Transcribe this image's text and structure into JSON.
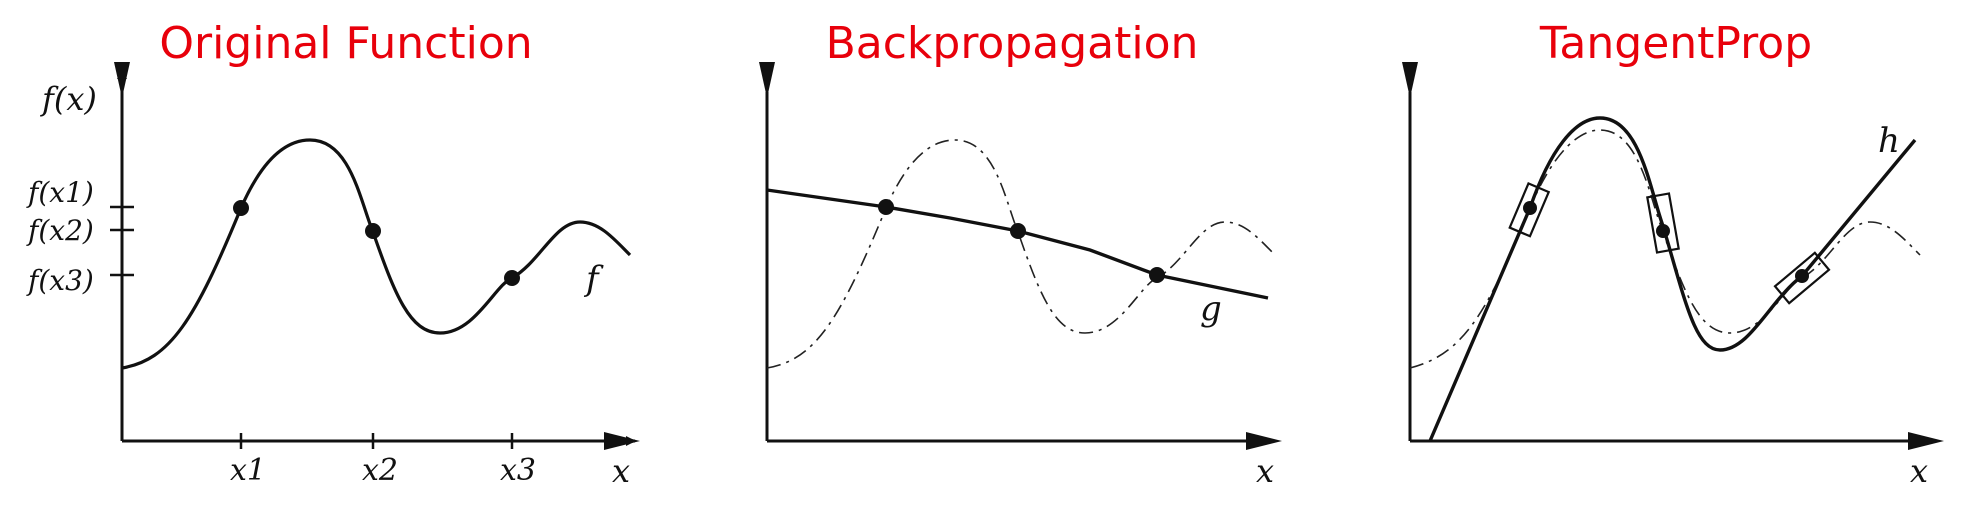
{
  "panels": [
    {
      "title": "Original Function",
      "y_axis_label": "f(x)",
      "y_tick_labels": [
        "f(x1)",
        "f(x2)",
        "f(x3)"
      ],
      "x_tick_labels": [
        "x1",
        "x2",
        "x3"
      ],
      "x_axis_label": "x",
      "curve_label": "f"
    },
    {
      "title": "Backpropagation",
      "x_axis_label": "x",
      "curve_label": "g"
    },
    {
      "title": "TangentProp",
      "x_axis_label": "x",
      "curve_label": "h"
    }
  ],
  "colors": {
    "title": "#e8000b",
    "ink": "#111111"
  }
}
